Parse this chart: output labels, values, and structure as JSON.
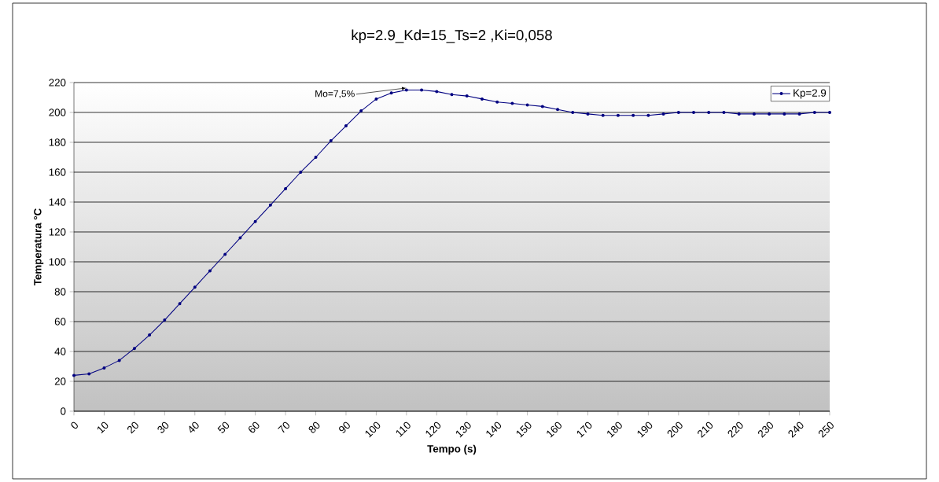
{
  "chart_data": {
    "type": "line",
    "title": "kp=2.9_Kd=15_Ts=2 ,Ki=0,058",
    "xlabel": "Tempo (s)",
    "ylabel": "Temperatura °C",
    "x": [
      0,
      5,
      10,
      15,
      20,
      25,
      30,
      35,
      40,
      45,
      50,
      55,
      60,
      65,
      70,
      75,
      80,
      85,
      90,
      95,
      100,
      105,
      110,
      115,
      120,
      125,
      130,
      135,
      140,
      145,
      150,
      155,
      160,
      165,
      170,
      175,
      180,
      185,
      190,
      195,
      200,
      205,
      210,
      215,
      220,
      225,
      230,
      235,
      240,
      245,
      250
    ],
    "series": [
      {
        "name": "Kp=2.9",
        "color": "#000080",
        "values": [
          24,
          25,
          29,
          34,
          42,
          51,
          61,
          72,
          83,
          94,
          105,
          116,
          127,
          138,
          149,
          160,
          170,
          181,
          191,
          201,
          209,
          213,
          215,
          215,
          214,
          212,
          211,
          209,
          207,
          206,
          205,
          204,
          202,
          200,
          199,
          198,
          198,
          198,
          198,
          199,
          200,
          200,
          200,
          200,
          199,
          199,
          199,
          199,
          199,
          200,
          200
        ]
      }
    ],
    "xlim": [
      0,
      250
    ],
    "xticks": [
      0,
      10,
      20,
      30,
      40,
      50,
      60,
      70,
      80,
      90,
      100,
      110,
      120,
      130,
      140,
      150,
      160,
      170,
      180,
      190,
      200,
      210,
      220,
      230,
      240,
      250
    ],
    "ylim": [
      0,
      220
    ],
    "yticks": [
      0,
      20,
      40,
      60,
      80,
      100,
      120,
      140,
      160,
      180,
      200,
      220
    ],
    "grid": "y",
    "legend": "top right",
    "marker": "circle",
    "line_style": "solid",
    "annotations": [
      {
        "text": "Mo=7,5%",
        "x": 110,
        "y": 215
      }
    ]
  }
}
